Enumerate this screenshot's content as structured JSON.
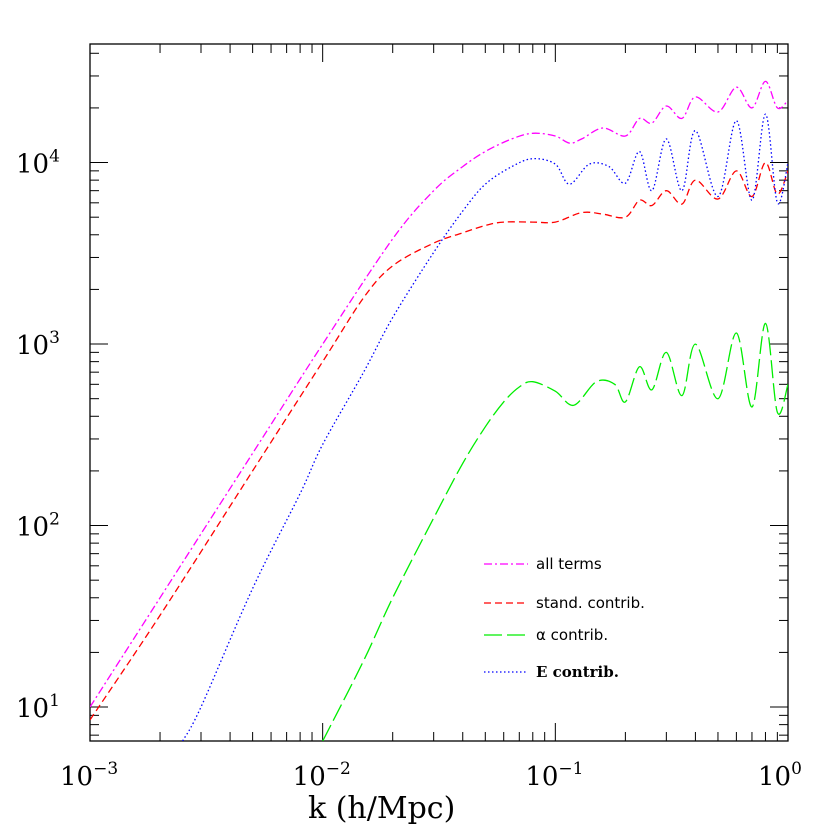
{
  "chart_data": {
    "type": "line",
    "title": "",
    "xlabel": "k (h/Mpc)",
    "ylabel": "",
    "xscale": "log",
    "yscale": "log",
    "xlim": [
      0.001,
      1.0
    ],
    "ylim": [
      6.5,
      45000
    ],
    "xticks": [
      {
        "base": "10",
        "exp": "−3",
        "value": 0.001
      },
      {
        "base": "10",
        "exp": "−2",
        "value": 0.01
      },
      {
        "base": "10",
        "exp": "−1",
        "value": 0.1
      },
      {
        "base": "10",
        "exp": "0",
        "value": 1.0
      }
    ],
    "yticks": [
      {
        "base": "10",
        "exp": "1",
        "value": 10
      },
      {
        "base": "10",
        "exp": "2",
        "value": 100
      },
      {
        "base": "10",
        "exp": "3",
        "value": 1000
      },
      {
        "base": "10",
        "exp": "4",
        "value": 10000
      }
    ],
    "grid": false,
    "legend_position": "bottom-right",
    "series": [
      {
        "name": "all terms",
        "color": "#ff00ff",
        "style": "dashdot",
        "x": [
          0.001,
          0.002,
          0.005,
          0.01,
          0.02,
          0.03,
          0.04,
          0.05,
          0.065,
          0.08,
          0.1,
          0.115,
          0.13,
          0.16,
          0.2,
          0.23,
          0.26,
          0.3,
          0.35,
          0.4,
          0.5,
          0.6,
          0.7,
          0.8,
          0.9,
          1.0
        ],
        "y": [
          10,
          40,
          250,
          1000,
          3800,
          7000,
          9500,
          11500,
          13500,
          14500,
          14000,
          12800,
          13500,
          15500,
          14000,
          17500,
          16500,
          20500,
          17500,
          23000,
          19000,
          26000,
          20000,
          28000,
          20000,
          22000
        ]
      },
      {
        "name": "stand. contrib.",
        "color": "#ff0000",
        "style": "dashed",
        "x": [
          0.001,
          0.002,
          0.005,
          0.01,
          0.015,
          0.02,
          0.03,
          0.04,
          0.05,
          0.06,
          0.08,
          0.1,
          0.13,
          0.16,
          0.2,
          0.23,
          0.26,
          0.3,
          0.35,
          0.4,
          0.5,
          0.6,
          0.7,
          0.8,
          0.9,
          1.0
        ],
        "y": [
          8.5,
          32,
          200,
          800,
          1800,
          2700,
          3600,
          4100,
          4500,
          4700,
          4700,
          4700,
          5300,
          5200,
          5000,
          6200,
          5800,
          7000,
          5900,
          8000,
          6300,
          9000,
          6500,
          10000,
          6700,
          9000
        ]
      },
      {
        "name": "α contrib.",
        "color": "#00ee00",
        "style": "longdash",
        "x": [
          0.01,
          0.015,
          0.02,
          0.03,
          0.04,
          0.05,
          0.06,
          0.07,
          0.08,
          0.1,
          0.12,
          0.15,
          0.18,
          0.2,
          0.23,
          0.26,
          0.3,
          0.35,
          0.4,
          0.5,
          0.6,
          0.7,
          0.8,
          0.9,
          1.0
        ],
        "y": [
          6.5,
          18,
          40,
          110,
          220,
          350,
          480,
          580,
          620,
          550,
          460,
          620,
          600,
          480,
          750,
          560,
          900,
          520,
          1000,
          500,
          1150,
          450,
          1300,
          420,
          600
        ]
      },
      {
        "name": "E contrib.",
        "color": "#0000ff",
        "style": "dotted",
        "x": [
          0.0025,
          0.003,
          0.005,
          0.008,
          0.01,
          0.015,
          0.02,
          0.03,
          0.04,
          0.05,
          0.065,
          0.08,
          0.1,
          0.115,
          0.14,
          0.17,
          0.2,
          0.23,
          0.26,
          0.3,
          0.35,
          0.4,
          0.5,
          0.6,
          0.7,
          0.8,
          0.9,
          1.0
        ],
        "y": [
          6.5,
          10,
          45,
          150,
          280,
          700,
          1400,
          3200,
          5400,
          7600,
          9500,
          10500,
          9800,
          7600,
          9800,
          9500,
          7700,
          11500,
          7000,
          13500,
          7000,
          15000,
          6500,
          17000,
          6200,
          18500,
          6000,
          10000
        ]
      }
    ]
  }
}
